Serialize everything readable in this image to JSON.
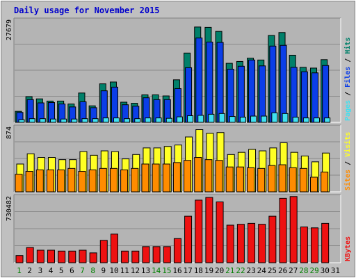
{
  "chart_data": {
    "type": "bar",
    "title": "Daily usage for November 2015",
    "categories": [
      "1",
      "2",
      "3",
      "4",
      "5",
      "6",
      "7",
      "8",
      "9",
      "10",
      "11",
      "12",
      "13",
      "14",
      "15",
      "16",
      "17",
      "18",
      "19",
      "20",
      "21",
      "22",
      "23",
      "24",
      "25",
      "26",
      "27",
      "28",
      "29",
      "30",
      "31"
    ],
    "weekend_days": [
      "1",
      "7",
      "8",
      "14",
      "15",
      "21",
      "22",
      "28",
      "29"
    ],
    "colors": {
      "background": "#c0c0c0",
      "plot": "#b4b4b4",
      "hits": "#00806a",
      "files": "#0b3ee8",
      "pages": "#40e0f0",
      "visits": "#ffff24",
      "sites": "#ff8c00",
      "kbytes": "#ee1111",
      "weekday_label": "#000000",
      "weekend_label": "#008000",
      "title": "#0000cc"
    },
    "panels": [
      {
        "id": "hits",
        "max_label": "27679",
        "ylim": [
          0,
          27679
        ],
        "label_parts": [
          {
            "text": "Pages",
            "color": "#40e0f0"
          },
          {
            "text": " / ",
            "color": "#000000"
          },
          {
            "text": "Files",
            "color": "#0b3ee8"
          },
          {
            "text": " / ",
            "color": "#000000"
          },
          {
            "text": "Hits",
            "color": "#00806a"
          }
        ],
        "series": [
          {
            "name": "Hits",
            "color": "#00806a",
            "values": [
              3000,
              7000,
              6400,
              5800,
              5800,
              5000,
              8000,
              4500,
              10500,
              11000,
              5500,
              5200,
              7500,
              7500,
              7200,
              11600,
              18900,
              26000,
              25900,
              24800,
              16100,
              16600,
              17500,
              17000,
              23700,
              24500,
              18300,
              15000,
              14800,
              17100,
              0
            ]
          },
          {
            "name": "Files",
            "color": "#0b3ee8",
            "values": [
              2700,
              6200,
              5300,
              5400,
              5000,
              4200,
              5600,
              4000,
              8600,
              9600,
              4800,
              4400,
              6700,
              6200,
              6200,
              9200,
              14900,
              23000,
              21900,
              21800,
              14500,
              15300,
              17000,
              15400,
              20800,
              21000,
              15000,
              13800,
              13500,
              15500,
              0
            ]
          },
          {
            "name": "Pages",
            "color": "#40e0f0",
            "values": [
              700,
              1000,
              1000,
              900,
              900,
              900,
              1000,
              1000,
              1200,
              1200,
              1000,
              1000,
              1200,
              1200,
              1100,
              1500,
              1800,
              1900,
              2200,
              2400,
              1600,
              1400,
              1700,
              1700,
              2600,
              2400,
              1400,
              1200,
              1200,
              1200,
              0
            ]
          }
        ]
      },
      {
        "id": "visits",
        "max_label": "874",
        "ylim": [
          0,
          874
        ],
        "label_parts": [
          {
            "text": "Sites",
            "color": "#ff8c00"
          },
          {
            "text": " / ",
            "color": "#000000"
          },
          {
            "text": "Visits",
            "color": "#ffff24"
          }
        ],
        "series": [
          {
            "name": "Visits",
            "color": "#ffff24",
            "values": [
              380,
              520,
              470,
              470,
              440,
              440,
              550,
              500,
              560,
              550,
              450,
              510,
              600,
              600,
              620,
              640,
              750,
              850,
              800,
              810,
              510,
              540,
              580,
              560,
              600,
              670,
              540,
              490,
              410,
              530,
              0
            ]
          },
          {
            "name": "Sites",
            "color": "#ff8c00",
            "values": [
              240,
              280,
              300,
              300,
              300,
              320,
              280,
              300,
              320,
              320,
              300,
              320,
              380,
              380,
              380,
              400,
              430,
              470,
              440,
              430,
              340,
              340,
              330,
              320,
              360,
              370,
              330,
              320,
              200,
              270,
              0
            ]
          }
        ]
      },
      {
        "id": "kbytes",
        "max_label": "730482",
        "ylim": [
          0,
          730482
        ],
        "label_parts": [
          {
            "text": "KBytes",
            "color": "#ee1111"
          }
        ],
        "series": [
          {
            "name": "KBytes",
            "color": "#ee1111",
            "values": [
              80000,
              170000,
              140000,
              140000,
              130000,
              130000,
              140000,
              110000,
              250000,
              320000,
              130000,
              130000,
              180000,
              180000,
              180000,
              270000,
              520000,
              700000,
              730000,
              680000,
              420000,
              430000,
              440000,
              430000,
              520000,
              720000,
              740000,
              400000,
              390000,
              440000,
              0
            ]
          }
        ]
      }
    ]
  }
}
